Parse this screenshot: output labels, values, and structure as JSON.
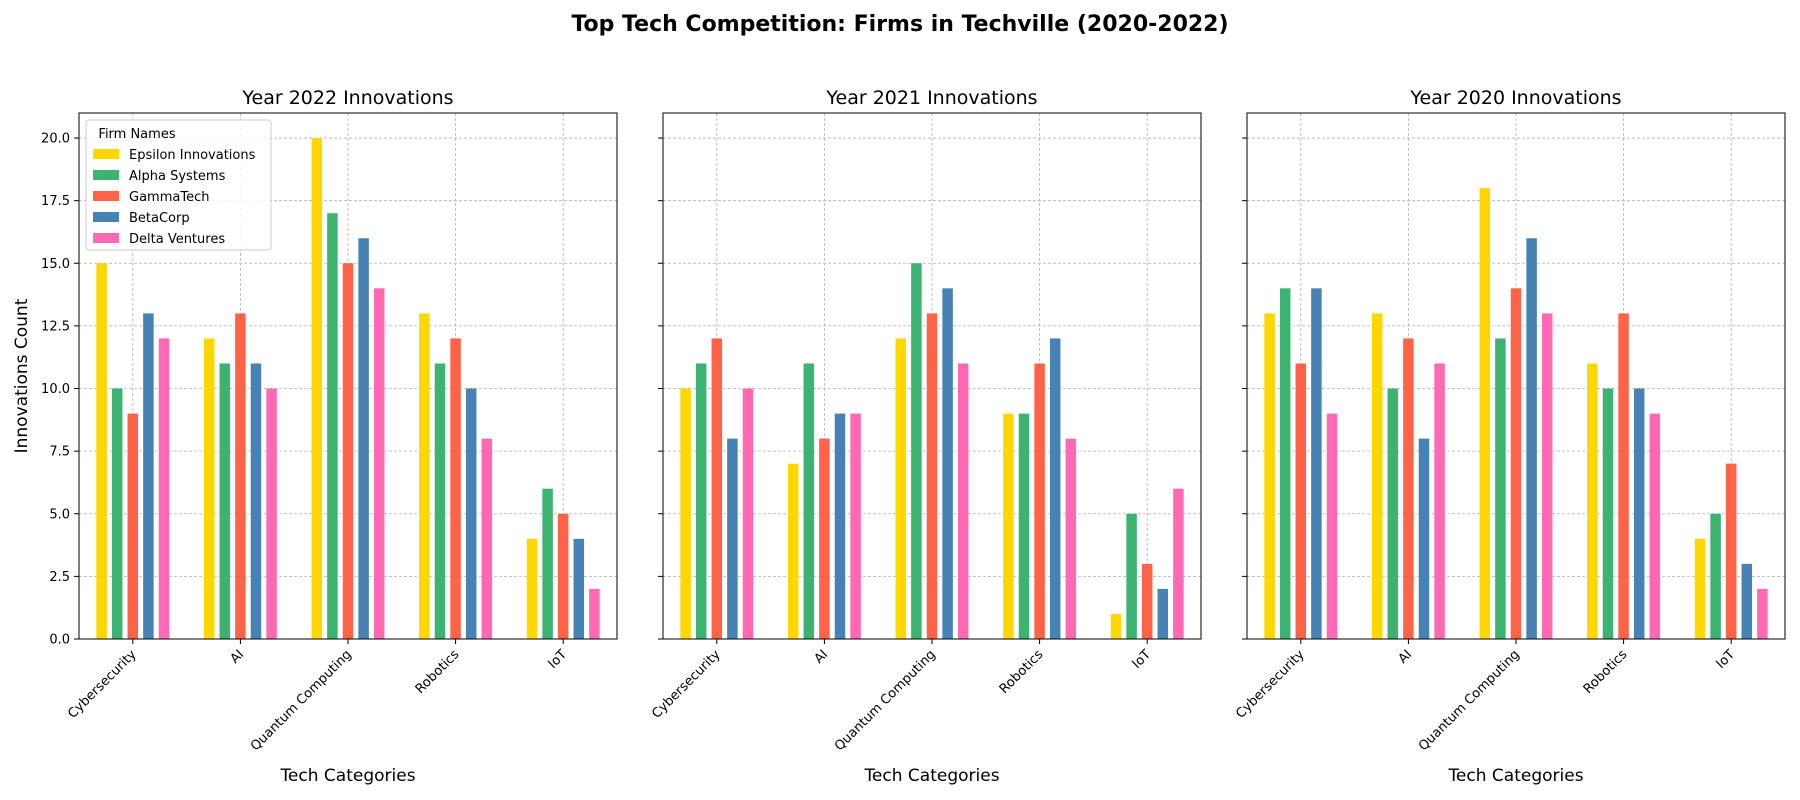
{
  "figure": {
    "title": "Top Tech Competition: Firms in Techville (2020-2022)"
  },
  "colors": {
    "Epsilon Innovations": "#FFD700",
    "Alpha Systems": "#3CB371",
    "GammaTech": "#FF6347",
    "BetaCorp": "#4682B4",
    "Delta Ventures": "#FF69B4"
  },
  "chart_data": [
    {
      "type": "bar",
      "title": "Year 2022 Innovations",
      "xlabel": "Tech Categories",
      "ylabel": "Innovations Count",
      "categories": [
        "Cybersecurity",
        "AI",
        "Quantum Computing",
        "Robotics",
        "IoT"
      ],
      "ylim": [
        0,
        21
      ],
      "yticks": [
        "0.0",
        "2.5",
        "5.0",
        "7.5",
        "10.0",
        "12.5",
        "15.0",
        "17.5",
        "20.0"
      ],
      "grid": true,
      "legend": {
        "title": "Firm Names",
        "placement": "top-left"
      },
      "series": [
        {
          "name": "Epsilon Innovations",
          "values": [
            15,
            12,
            20,
            13,
            4
          ]
        },
        {
          "name": "Alpha Systems",
          "values": [
            10,
            11,
            17,
            11,
            6
          ]
        },
        {
          "name": "GammaTech",
          "values": [
            9,
            13,
            15,
            12,
            5
          ]
        },
        {
          "name": "BetaCorp",
          "values": [
            13,
            11,
            16,
            10,
            4
          ]
        },
        {
          "name": "Delta Ventures",
          "values": [
            12,
            10,
            14,
            8,
            2
          ]
        }
      ]
    },
    {
      "type": "bar",
      "title": "Year 2021 Innovations",
      "xlabel": "Tech Categories",
      "ylabel": "",
      "categories": [
        "Cybersecurity",
        "AI",
        "Quantum Computing",
        "Robotics",
        "IoT"
      ],
      "ylim": [
        0,
        21
      ],
      "grid": true,
      "series": [
        {
          "name": "Epsilon Innovations",
          "values": [
            10,
            7,
            12,
            9,
            1
          ]
        },
        {
          "name": "Alpha Systems",
          "values": [
            11,
            11,
            15,
            9,
            5
          ]
        },
        {
          "name": "GammaTech",
          "values": [
            12,
            8,
            13,
            11,
            3
          ]
        },
        {
          "name": "BetaCorp",
          "values": [
            8,
            9,
            14,
            12,
            2
          ]
        },
        {
          "name": "Delta Ventures",
          "values": [
            10,
            9,
            11,
            8,
            6
          ]
        }
      ]
    },
    {
      "type": "bar",
      "title": "Year 2020 Innovations",
      "xlabel": "Tech Categories",
      "ylabel": "",
      "categories": [
        "Cybersecurity",
        "AI",
        "Quantum Computing",
        "Robotics",
        "IoT"
      ],
      "ylim": [
        0,
        21
      ],
      "grid": true,
      "series": [
        {
          "name": "Epsilon Innovations",
          "values": [
            13,
            13,
            18,
            11,
            4
          ]
        },
        {
          "name": "Alpha Systems",
          "values": [
            14,
            10,
            12,
            10,
            5
          ]
        },
        {
          "name": "GammaTech",
          "values": [
            11,
            12,
            14,
            13,
            7
          ]
        },
        {
          "name": "BetaCorp",
          "values": [
            14,
            8,
            16,
            10,
            3
          ]
        },
        {
          "name": "Delta Ventures",
          "values": [
            9,
            11,
            13,
            9,
            2
          ]
        }
      ]
    }
  ]
}
